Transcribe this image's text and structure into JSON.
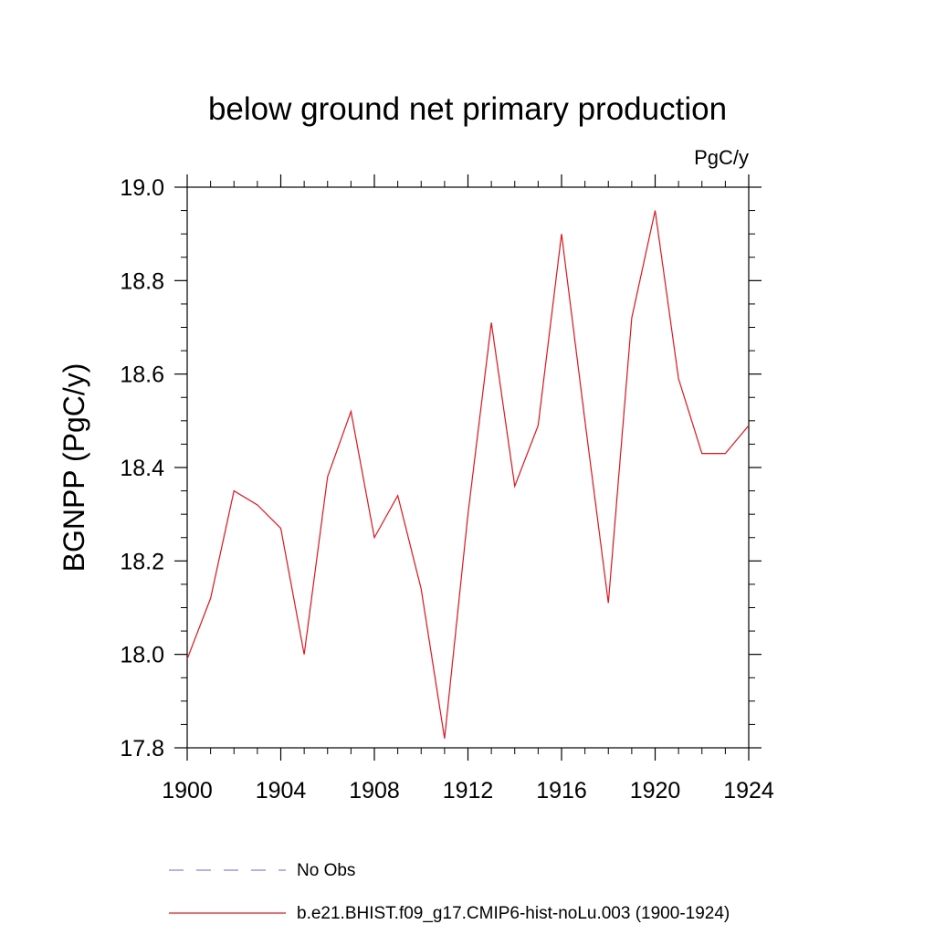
{
  "chart_data": {
    "type": "line",
    "title": "below ground net primary production",
    "units_label": "PgC/y",
    "ylabel": "BGNPP  (PgC/y)",
    "xlabel": "",
    "xlim": [
      1900,
      1924
    ],
    "ylim": [
      17.8,
      19.0
    ],
    "x_ticks": [
      1900,
      1904,
      1908,
      1912,
      1916,
      1920,
      1924
    ],
    "x_tick_labels": [
      "1900",
      "1904",
      "1908",
      "1912",
      "1916",
      "1920",
      "1924"
    ],
    "y_ticks": [
      17.8,
      18.0,
      18.2,
      18.4,
      18.6,
      18.8,
      19.0
    ],
    "y_tick_labels": [
      "17.8",
      "18.0",
      "18.2",
      "18.4",
      "18.6",
      "18.8",
      "19.0"
    ],
    "grid": false,
    "legend_position": "bottom",
    "series": [
      {
        "name": "b.e21.BHIST.f09_g17.CMIP6-hist-noLu.003 (1900-1924)",
        "color": "#e8141c",
        "x": [
          1900,
          1901,
          1902,
          1903,
          1904,
          1905,
          1906,
          1907,
          1908,
          1909,
          1910,
          1911,
          1912,
          1913,
          1914,
          1915,
          1916,
          1917,
          1918,
          1919,
          1920,
          1921,
          1922,
          1923,
          1924
        ],
        "values": [
          17.99,
          18.12,
          18.35,
          18.32,
          18.27,
          18.0,
          18.38,
          18.52,
          18.25,
          18.34,
          18.14,
          17.82,
          18.3,
          18.71,
          18.36,
          18.49,
          18.9,
          18.5,
          18.11,
          18.72,
          18.95,
          18.59,
          18.43,
          18.43,
          18.49
        ]
      }
    ],
    "legend": [
      {
        "label": "No Obs",
        "style": "dashed",
        "color": "#8b86c8"
      },
      {
        "label": "b.e21.BHIST.f09_g17.CMIP6-hist-noLu.003 (1900-1924)",
        "style": "solid",
        "color": "#e8141c"
      }
    ]
  }
}
